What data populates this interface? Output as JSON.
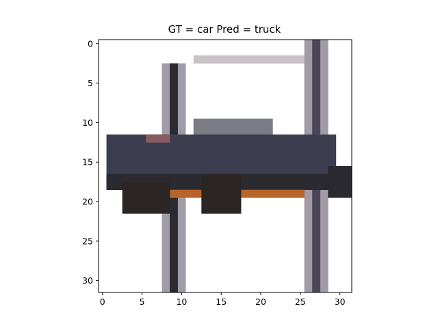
{
  "figure": {
    "title": "GT = car Pred = truck",
    "image_size": [
      32,
      32
    ],
    "x_ticks": [
      0,
      5,
      10,
      15,
      20,
      25,
      30
    ],
    "y_ticks": [
      0,
      5,
      10,
      15,
      20,
      25,
      30
    ],
    "background_color": "#ffffff",
    "colors": {
      "car_body": "#3c3d4f",
      "car_body_dark": "#2a2a30",
      "car_roof_highlight": "#7b7c85",
      "car_stripe_orange": "#b9652a",
      "tires": "#2b2524",
      "lift_pole": "#4a4658",
      "lift_pole_light": "#a09ba6",
      "lift_arm": "#c9c2c6",
      "car_trim_red": "#8a5b5e"
    }
  }
}
